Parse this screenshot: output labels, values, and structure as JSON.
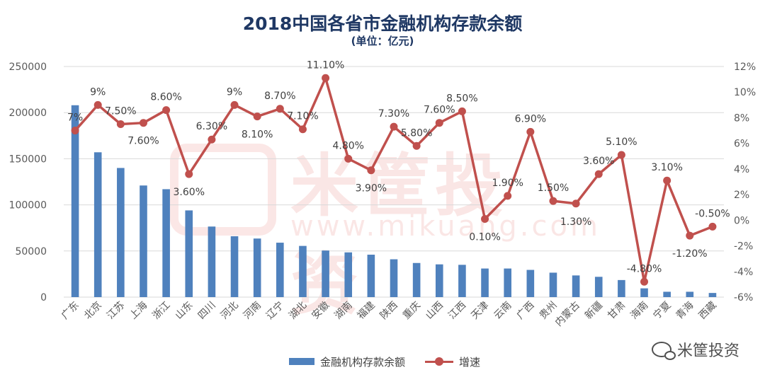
{
  "chart_data": {
    "type": "bar",
    "title": "2018中国各省市金融机构存款余额",
    "subtitle": "(单位：亿元)",
    "categories": [
      "广东",
      "北京",
      "江苏",
      "上海",
      "浙江",
      "山东",
      "四川",
      "河北",
      "河南",
      "辽宁",
      "湖北",
      "安徽",
      "湖南",
      "福建",
      "陕西",
      "重庆",
      "山西",
      "江西",
      "天津",
      "云南",
      "广西",
      "贵州",
      "内蒙古",
      "新疆",
      "甘肃",
      "海南",
      "宁夏",
      "青海",
      "西藏"
    ],
    "series": [
      {
        "name": "金融机构存款余额",
        "type": "bar",
        "axis": "left",
        "color": "#4f81bd",
        "values": [
          208000,
          157000,
          140000,
          121000,
          117000,
          94000,
          76500,
          66000,
          63500,
          59000,
          55500,
          50500,
          48500,
          46000,
          41000,
          37000,
          35500,
          35000,
          31000,
          31000,
          29500,
          26500,
          23500,
          22000,
          18500,
          9500,
          5800,
          5800,
          4500
        ]
      },
      {
        "name": "增速",
        "type": "line",
        "axis": "right",
        "color": "#c0504d",
        "values": [
          7,
          9,
          7.5,
          7.6,
          8.6,
          3.6,
          6.3,
          9,
          8.1,
          8.7,
          7.1,
          11.1,
          4.8,
          3.9,
          7.3,
          5.8,
          7.6,
          8.5,
          0.1,
          1.9,
          6.9,
          1.5,
          1.3,
          3.6,
          5.1,
          -4.8,
          3.1,
          -1.2,
          -0.5
        ],
        "labels": [
          "7%",
          "9%",
          "7.50%",
          "7.60%",
          "8.60%",
          "3.60%",
          "6.30%",
          "9%",
          "8.10%",
          "8.70%",
          "7.10%",
          "11.10%",
          "4.80%",
          "3.90%",
          "7.30%",
          "5.80%",
          "7.60%",
          "8.50%",
          "0.10%",
          "1.90%",
          "6.90%",
          "1.50%",
          "1.30%",
          "3.60%",
          "5.10%",
          "-4.80%",
          "3.10%",
          "-1.20%",
          "-0.50%"
        ]
      }
    ],
    "y_left": {
      "range": [
        0,
        250000
      ],
      "ticks": [
        "0",
        "50000",
        "100000",
        "150000",
        "200000",
        "250000"
      ]
    },
    "y_right": {
      "range": [
        -6,
        12
      ],
      "ticks": [
        "-6%",
        "-4%",
        "-2%",
        "0%",
        "2%",
        "4%",
        "6%",
        "8%",
        "10%",
        "12%"
      ]
    },
    "grid": true,
    "legend": "bottom",
    "watermark": {
      "brand": "米筐投资",
      "url": "www.mikuang.com"
    },
    "brand_tag": "米筐投资"
  }
}
